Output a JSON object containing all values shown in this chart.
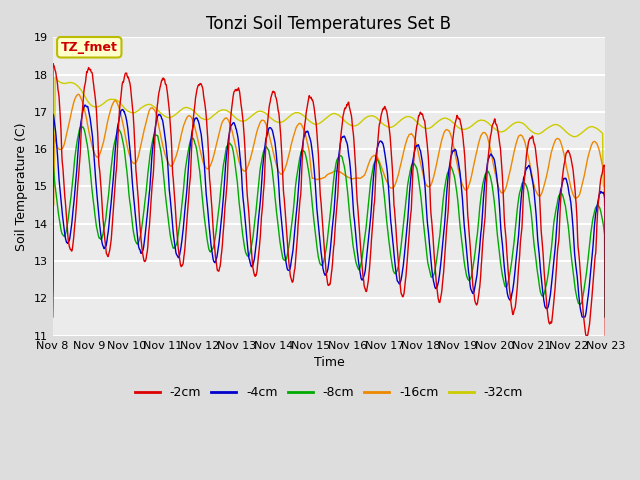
{
  "title": "Tonzi Soil Temperatures Set B",
  "xlabel": "Time",
  "ylabel": "Soil Temperature (C)",
  "ylim": [
    11.0,
    19.0
  ],
  "yticks": [
    11.0,
    12.0,
    13.0,
    14.0,
    15.0,
    16.0,
    17.0,
    18.0,
    19.0
  ],
  "n_days": 15,
  "xtick_labels": [
    "Nov 8",
    "Nov 9",
    "Nov 10",
    "Nov 11",
    "Nov 12",
    "Nov 13",
    "Nov 14",
    "Nov 15",
    "Nov 16",
    "Nov 17",
    "Nov 18",
    "Nov 19",
    "Nov 20",
    "Nov 21",
    "Nov 22",
    "Nov 23"
  ],
  "colors": {
    "-2cm": "#dd0000",
    "-4cm": "#0000cc",
    "-8cm": "#00aa00",
    "-16cm": "#ee8800",
    "-32cm": "#cccc00"
  },
  "legend_labels": [
    "-2cm",
    "-4cm",
    "-8cm",
    "-16cm",
    "-32cm"
  ],
  "annotation_label": "TZ_fmet",
  "annotation_bg": "#ffffcc",
  "annotation_border": "#bbbb00",
  "annotation_text_color": "#cc0000",
  "bg_color": "#dddddd",
  "plot_bg_color": "#ebebeb",
  "grid_color": "#ffffff"
}
